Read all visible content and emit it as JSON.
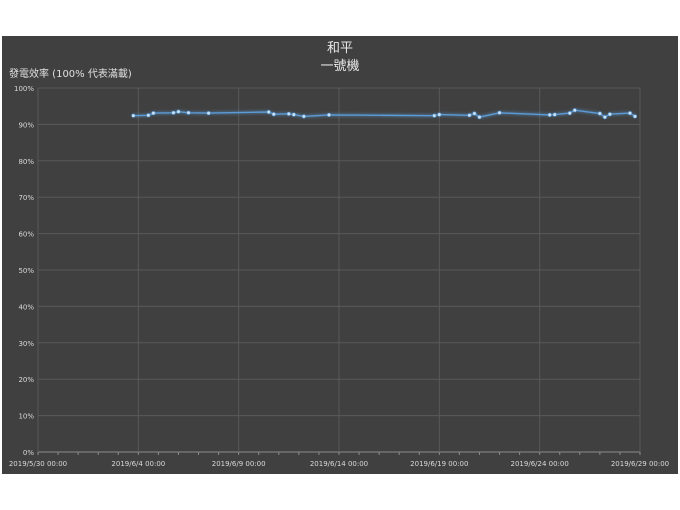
{
  "chart_data": {
    "type": "line",
    "title": "和平",
    "subtitle": "一號機",
    "ylabel": "發電效率 (100% 代表滿載)",
    "xlabel": "",
    "x_type": "datetime",
    "xlim": [
      "2019-05-30 00:00",
      "2019-06-29 00:00"
    ],
    "ylim": [
      0,
      100
    ],
    "x_ticks": [
      "2019/5/30 00:00",
      "2019/6/4 00:00",
      "2019/6/9 00:00",
      "2019/6/14 00:00",
      "2019/6/19 00:00",
      "2019/6/24 00:00",
      "2019/6/29 00:00"
    ],
    "y_ticks": [
      "0%",
      "10%",
      "20%",
      "30%",
      "40%",
      "50%",
      "60%",
      "70%",
      "80%",
      "90%",
      "100%"
    ],
    "grid": true,
    "legend": "none",
    "series": [
      {
        "color": "#5b9bd5",
        "x": [
          "2019-06-03 18:00",
          "2019-06-04 12:00",
          "2019-06-04 18:00",
          "2019-06-05 18:00",
          "2019-06-06 00:00",
          "2019-06-06 12:00",
          "2019-06-07 12:00",
          "2019-06-10 12:00",
          "2019-06-10 18:00",
          "2019-06-11 12:00",
          "2019-06-11 18:00",
          "2019-06-12 06:00",
          "2019-06-13 12:00",
          "2019-06-18 18:00",
          "2019-06-19 00:00",
          "2019-06-20 12:00",
          "2019-06-20 18:00",
          "2019-06-21 00:00",
          "2019-06-22 00:00",
          "2019-06-24 12:00",
          "2019-06-24 18:00",
          "2019-06-25 12:00",
          "2019-06-25 18:00",
          "2019-06-27 00:00",
          "2019-06-27 06:00",
          "2019-06-27 12:00",
          "2019-06-28 12:00",
          "2019-06-28 18:00"
        ],
        "values": [
          92.4,
          92.5,
          93.1,
          93.2,
          93.5,
          93.2,
          93.1,
          93.4,
          92.8,
          92.9,
          92.7,
          92.2,
          92.6,
          92.4,
          92.7,
          92.5,
          93.0,
          92.0,
          93.2,
          92.6,
          92.7,
          93.1,
          93.9,
          93.0,
          92.0,
          92.8,
          93.1,
          92.2
        ]
      }
    ]
  }
}
